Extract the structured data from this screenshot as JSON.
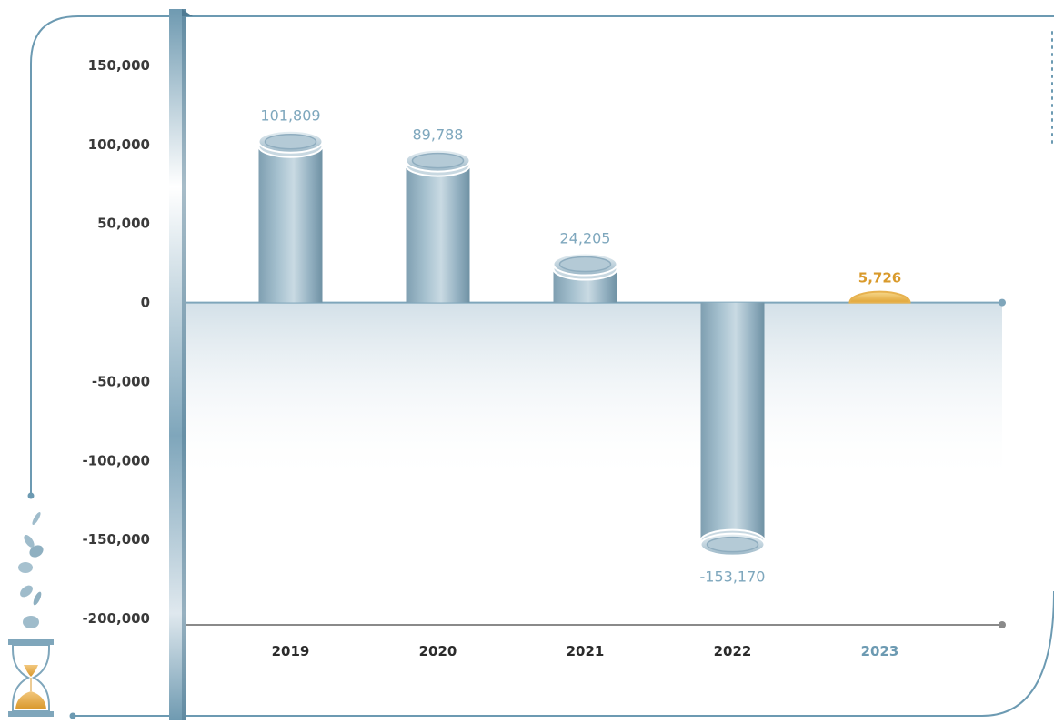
{
  "chart_data": {
    "type": "bar",
    "categories": [
      "2019",
      "2020",
      "2021",
      "2022",
      "2023"
    ],
    "values": [
      101809,
      89788,
      24205,
      -153170,
      5726
    ],
    "value_labels": [
      "101,809",
      "89,788",
      "24,205",
      "-153,170",
      "5,726"
    ],
    "highlight_index": 4,
    "ylim": [
      -200000,
      150000
    ],
    "yticks": [
      150000,
      100000,
      50000,
      0,
      -50000,
      -100000,
      -150000,
      -200000
    ],
    "ytick_labels": [
      "150,000",
      "100,000",
      "50,000",
      "0",
      "-50,000",
      "-100,000",
      "-150,000",
      "-200,000"
    ],
    "title": "",
    "xlabel": "",
    "ylabel": "",
    "grid": false,
    "colors": {
      "bar": "#9fbccb",
      "bar_dark": "#7d9fb2",
      "highlight": "#e3a43a",
      "frame": "#6c9ab2",
      "zero_fill": "#d6e2ea"
    }
  }
}
